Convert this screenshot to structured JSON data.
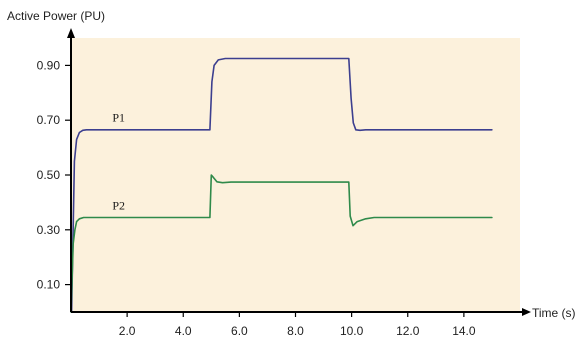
{
  "chart_data": {
    "type": "line",
    "title": "",
    "xlabel": "Time (s)",
    "ylabel": "Active Power (PU)",
    "xlim": [
      0,
      16.0
    ],
    "ylim": [
      0,
      1.0
    ],
    "x_ticks": [
      2.0,
      4.0,
      6.0,
      8.0,
      10.0,
      12.0,
      14.0
    ],
    "x_tick_labels": [
      "2.0",
      "4.0",
      "6.0",
      "8.0",
      "10.0",
      "12.0",
      "14.0"
    ],
    "y_ticks": [
      0.1,
      0.3,
      0.5,
      0.7,
      0.9
    ],
    "y_tick_labels": [
      "0.10",
      "0.30",
      "0.50",
      "0.70",
      "0.90"
    ],
    "grid": false,
    "legend": "none",
    "plot_background": "#fcf1dc",
    "series": [
      {
        "name": "P1",
        "color": "#3c3f8f",
        "x": [
          0.02,
          0.12,
          0.2,
          0.3,
          0.42,
          0.55,
          0.8,
          1.2,
          4.95,
          5.02,
          5.1,
          5.25,
          5.5,
          7.5,
          9.9,
          9.98,
          10.06,
          10.15,
          10.3,
          10.5,
          15.0
        ],
        "y": [
          0.0,
          0.55,
          0.63,
          0.655,
          0.663,
          0.665,
          0.665,
          0.665,
          0.665,
          0.84,
          0.9,
          0.92,
          0.925,
          0.925,
          0.925,
          0.78,
          0.69,
          0.665,
          0.663,
          0.665,
          0.665
        ]
      },
      {
        "name": "P2",
        "color": "#2f8a4a",
        "x": [
          0.0,
          0.08,
          0.14,
          0.2,
          0.3,
          0.45,
          0.7,
          1.2,
          4.95,
          5.0,
          5.08,
          5.2,
          5.4,
          5.7,
          7.5,
          9.9,
          9.95,
          10.05,
          10.2,
          10.5,
          10.8,
          15.0
        ],
        "y": [
          0.0,
          0.25,
          0.3,
          0.33,
          0.34,
          0.345,
          0.345,
          0.345,
          0.345,
          0.5,
          0.49,
          0.475,
          0.472,
          0.474,
          0.474,
          0.474,
          0.35,
          0.315,
          0.33,
          0.34,
          0.345,
          0.345
        ]
      }
    ],
    "annotations": [
      {
        "text": "P1",
        "x": 1.7,
        "y": 0.695
      },
      {
        "text": "P2",
        "x": 1.7,
        "y": 0.375
      }
    ]
  }
}
